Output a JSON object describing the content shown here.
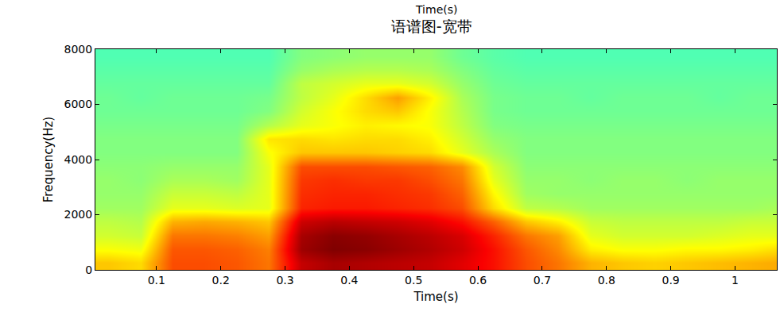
{
  "chart_data": {
    "type": "heatmap",
    "title": "语谱图-宽带",
    "annotations": [
      "Time(s)"
    ],
    "x_label": "Time(s)",
    "y_label": "Frequency(Hz)",
    "x": [
      0.025,
      0.075,
      0.125,
      0.175,
      0.225,
      0.275,
      0.325,
      0.375,
      0.425,
      0.475,
      0.525,
      0.575,
      0.625,
      0.675,
      0.725,
      0.775,
      0.825,
      0.875,
      0.925,
      0.975,
      1.025,
      1.075
    ],
    "y": [
      250,
      750,
      1250,
      1750,
      2250,
      2750,
      3250,
      3750,
      4250,
      4750,
      5250,
      5750,
      6250,
      6750,
      7250,
      7750
    ],
    "z": [
      [
        0.68,
        0.66,
        0.8,
        0.8,
        0.79,
        0.76,
        0.93,
        0.96,
        0.95,
        0.94,
        0.93,
        0.9,
        0.86,
        0.8,
        0.76,
        0.7,
        0.68,
        0.67,
        0.68,
        0.69,
        0.7,
        0.71
      ],
      [
        0.62,
        0.61,
        0.79,
        0.79,
        0.78,
        0.75,
        0.97,
        1.0,
        0.99,
        0.97,
        0.95,
        0.92,
        0.86,
        0.79,
        0.74,
        0.64,
        0.62,
        0.62,
        0.63,
        0.63,
        0.64,
        0.66
      ],
      [
        0.58,
        0.57,
        0.76,
        0.76,
        0.75,
        0.72,
        0.96,
        0.99,
        0.98,
        0.96,
        0.94,
        0.91,
        0.84,
        0.76,
        0.72,
        0.6,
        0.58,
        0.58,
        0.58,
        0.59,
        0.6,
        0.6
      ],
      [
        0.56,
        0.55,
        0.7,
        0.71,
        0.7,
        0.68,
        0.92,
        0.94,
        0.93,
        0.92,
        0.9,
        0.86,
        0.78,
        0.68,
        0.64,
        0.57,
        0.56,
        0.56,
        0.56,
        0.56,
        0.57,
        0.57
      ],
      [
        0.53,
        0.53,
        0.6,
        0.6,
        0.59,
        0.6,
        0.84,
        0.85,
        0.85,
        0.84,
        0.83,
        0.8,
        0.66,
        0.56,
        0.55,
        0.53,
        0.53,
        0.53,
        0.53,
        0.53,
        0.53,
        0.54
      ],
      [
        0.52,
        0.52,
        0.57,
        0.57,
        0.56,
        0.6,
        0.83,
        0.84,
        0.84,
        0.83,
        0.82,
        0.78,
        0.63,
        0.53,
        0.52,
        0.52,
        0.52,
        0.52,
        0.52,
        0.52,
        0.52,
        0.52
      ],
      [
        0.52,
        0.51,
        0.54,
        0.54,
        0.53,
        0.6,
        0.82,
        0.83,
        0.82,
        0.82,
        0.8,
        0.76,
        0.6,
        0.52,
        0.52,
        0.51,
        0.52,
        0.52,
        0.51,
        0.52,
        0.52,
        0.52
      ],
      [
        0.51,
        0.51,
        0.52,
        0.52,
        0.52,
        0.6,
        0.8,
        0.8,
        0.8,
        0.79,
        0.78,
        0.74,
        0.58,
        0.51,
        0.51,
        0.51,
        0.51,
        0.51,
        0.51,
        0.51,
        0.51,
        0.51
      ],
      [
        0.5,
        0.5,
        0.5,
        0.5,
        0.5,
        0.62,
        0.68,
        0.68,
        0.68,
        0.67,
        0.66,
        0.6,
        0.54,
        0.5,
        0.5,
        0.5,
        0.5,
        0.5,
        0.5,
        0.5,
        0.5,
        0.5
      ],
      [
        0.5,
        0.5,
        0.5,
        0.5,
        0.5,
        0.65,
        0.66,
        0.65,
        0.66,
        0.66,
        0.64,
        0.58,
        0.52,
        0.5,
        0.5,
        0.5,
        0.5,
        0.5,
        0.5,
        0.5,
        0.5,
        0.5
      ],
      [
        0.49,
        0.49,
        0.49,
        0.49,
        0.49,
        0.55,
        0.6,
        0.62,
        0.64,
        0.63,
        0.62,
        0.56,
        0.5,
        0.49,
        0.49,
        0.49,
        0.49,
        0.49,
        0.49,
        0.49,
        0.49,
        0.49
      ],
      [
        0.48,
        0.48,
        0.48,
        0.48,
        0.48,
        0.5,
        0.58,
        0.62,
        0.66,
        0.68,
        0.62,
        0.55,
        0.49,
        0.48,
        0.48,
        0.48,
        0.48,
        0.48,
        0.48,
        0.48,
        0.48,
        0.48
      ],
      [
        0.48,
        0.47,
        0.48,
        0.48,
        0.48,
        0.49,
        0.56,
        0.6,
        0.66,
        0.72,
        0.64,
        0.54,
        0.49,
        0.48,
        0.48,
        0.47,
        0.48,
        0.48,
        0.48,
        0.47,
        0.48,
        0.48
      ],
      [
        0.47,
        0.47,
        0.47,
        0.47,
        0.47,
        0.47,
        0.56,
        0.58,
        0.6,
        0.6,
        0.58,
        0.52,
        0.48,
        0.47,
        0.47,
        0.47,
        0.47,
        0.47,
        0.47,
        0.47,
        0.47,
        0.47
      ],
      [
        0.46,
        0.46,
        0.46,
        0.46,
        0.46,
        0.46,
        0.52,
        0.54,
        0.55,
        0.55,
        0.54,
        0.5,
        0.47,
        0.46,
        0.46,
        0.46,
        0.46,
        0.46,
        0.46,
        0.46,
        0.46,
        0.46
      ],
      [
        0.45,
        0.45,
        0.45,
        0.45,
        0.45,
        0.45,
        0.5,
        0.51,
        0.52,
        0.52,
        0.52,
        0.48,
        0.46,
        0.45,
        0.45,
        0.45,
        0.45,
        0.45,
        0.45,
        0.45,
        0.45,
        0.45
      ]
    ],
    "zlim": [
      0,
      1
    ],
    "xlim": [
      0.005,
      1.065
    ],
    "ylim": [
      0,
      8000
    ],
    "xticks": [
      0.1,
      0.2,
      0.3,
      0.4,
      0.5,
      0.6,
      0.7,
      0.8,
      0.9,
      1
    ],
    "yticks": [
      0,
      2000,
      4000,
      6000,
      8000
    ],
    "grid": false
  }
}
